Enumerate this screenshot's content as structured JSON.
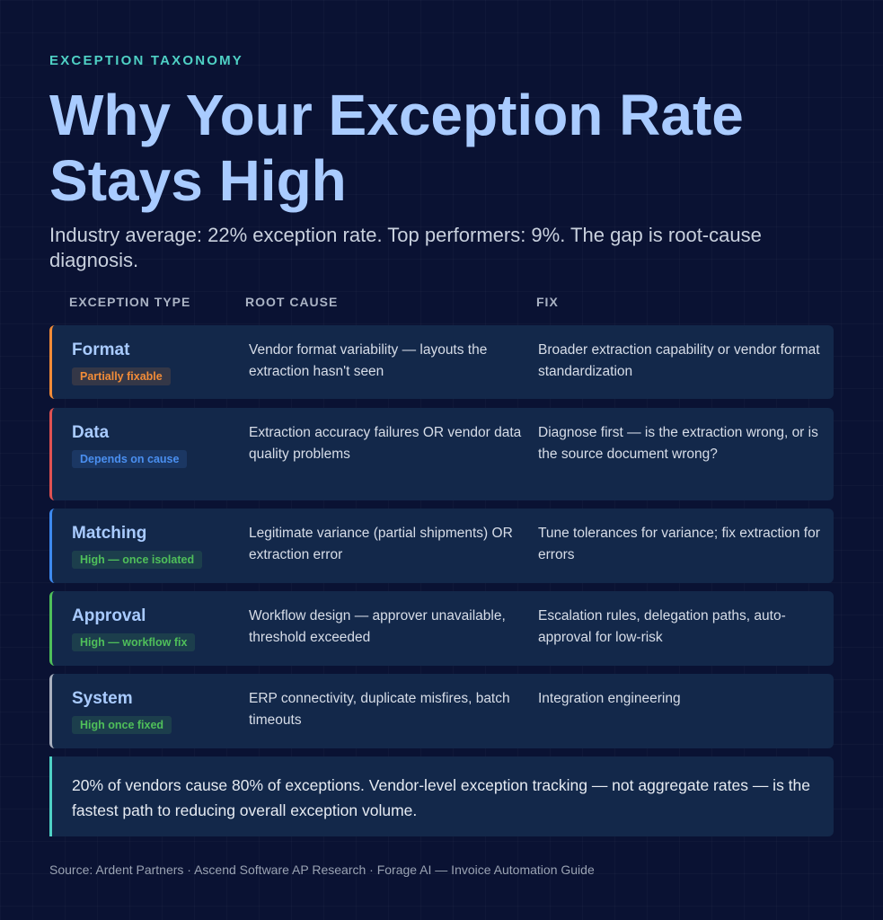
{
  "eyebrow": "EXCEPTION TAXONOMY",
  "title": "Why Your Exception Rate Stays High",
  "subtitle": "Industry average: 22% exception rate. Top performers: 9%. The gap is root-cause diagnosis.",
  "columns": [
    "EXCEPTION TYPE",
    "ROOT CAUSE",
    "FIX"
  ],
  "rows": [
    {
      "name": "Format",
      "badge": "Partially fixable",
      "root": "Vendor format variability — layouts the extraction hasn't seen",
      "fix": "Broader extraction capability or vendor format standardization",
      "accent": "#f28c38",
      "badge_color": "#f28c38"
    },
    {
      "name": "Data",
      "badge": "Depends on cause",
      "root": "Extraction accuracy failures OR vendor data quality problems",
      "fix": "Diagnose first — is the extraction wrong, or is the source document wrong?",
      "accent": "#e05252",
      "badge_color": "#4a8ff0"
    },
    {
      "name": "Matching",
      "badge": "High — once isolated",
      "root": "Legitimate variance (partial shipments) OR extraction error",
      "fix": "Tune tolerances for variance; fix extraction for errors",
      "accent": "#3d8af0",
      "badge_color": "#4fbf5a"
    },
    {
      "name": "Approval",
      "badge": "High — workflow fix",
      "root": "Workflow design — approver unavailable, threshold exceeded",
      "fix": "Escalation rules, delegation paths, auto-approval for low-risk",
      "accent": "#4fbf5a",
      "badge_color": "#4fbf5a"
    },
    {
      "name": "System",
      "badge": "High once fixed",
      "root": "ERP connectivity, duplicate misfires, batch timeouts",
      "fix": "Integration engineering",
      "accent": "#a9b0bf",
      "badge_color": "#4fbf5a"
    }
  ],
  "note": "20% of vendors cause 80% of exceptions. Vendor-level exception tracking — not aggregate rates — is the fastest path to reducing overall exception volume.",
  "source": "Source: Ardent Partners · Ascend Software AP Research · Forage AI — Invoice Automation Guide"
}
